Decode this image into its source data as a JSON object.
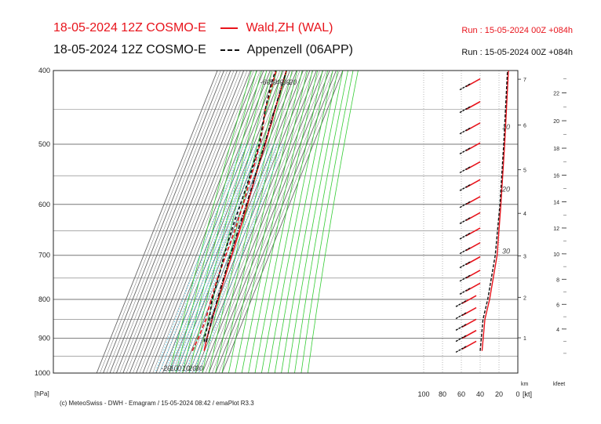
{
  "header": {
    "line1_date": "18-05-2024 12Z COSMO-E",
    "line1_station": "Wald,ZH (WAL)",
    "line1_run": "Run : 15-05-2024 00Z +084h",
    "line2_date": "18-05-2024 12Z COSMO-E",
    "line2_station": "Appenzell (06APP)",
    "line2_run": "Run : 15-05-2024 00Z +084h"
  },
  "footer": {
    "credit": "(c) MeteoSwiss - DWH - Emagram / 15-05-2024  08:42 / emaPlot R3.3",
    "hpa_unit": "[hPa]",
    "kt_unit": "[kt]",
    "km_unit": "km",
    "kfeet_unit": "kfeet"
  },
  "colors": {
    "wald": "#e8141c",
    "appenzell": "#111111",
    "isotherm": "#666666",
    "dry_adiabat": "#33cc33",
    "mixing_ratio": "#55ccee",
    "isobar": "#777777"
  },
  "chart_data": {
    "type": "line",
    "title": "",
    "pressure_axis": {
      "ticks": [
        400,
        500,
        600,
        700,
        800,
        900,
        1000
      ],
      "labels": [
        "400",
        "500",
        "600",
        "700",
        "800",
        "900",
        "1000"
      ],
      "range": [
        1000,
        400
      ],
      "scale": "log"
    },
    "temperature_labels": {
      "bottom": [
        "-20",
        "-10",
        "0",
        "10",
        "20",
        "30"
      ],
      "top": [
        "-60",
        "-50",
        "-40",
        "-30",
        "-20"
      ],
      "left": [
        "-60",
        "-50",
        "-40",
        "-30",
        "-20"
      ]
    },
    "wind_speed_axis": {
      "labels": [
        "100",
        "80",
        "60",
        "40",
        "20",
        "0"
      ],
      "range": [
        100,
        0
      ]
    },
    "temperature_scale_labels": [
      "10",
      "20",
      "30"
    ],
    "km_ticks": [
      "1",
      "2",
      "3",
      "4",
      "5",
      "6",
      "7"
    ],
    "kfeet_ticks": [
      "4",
      "6",
      "8",
      "10",
      "12",
      "14",
      "16",
      "18",
      "20",
      "22"
    ],
    "series": [
      {
        "name": "Wald,ZH (WAL)",
        "temperature": [
          [
            935,
            19.5
          ],
          [
            900,
            16.0
          ],
          [
            850,
            12.5
          ],
          [
            800,
            9.5
          ],
          [
            750,
            6.5
          ],
          [
            700,
            3.5
          ],
          [
            650,
            0.5
          ],
          [
            600,
            -3.5
          ],
          [
            550,
            -8.5
          ],
          [
            500,
            -13.0
          ],
          [
            450,
            -19.0
          ],
          [
            400,
            -25.5
          ]
        ],
        "dewpoint": [
          [
            935,
            1.5
          ],
          [
            900,
            3.0
          ],
          [
            850,
            3.0
          ],
          [
            800,
            -1.0
          ],
          [
            750,
            -4.0
          ],
          [
            700,
            -5.5
          ],
          [
            650,
            -7.0
          ],
          [
            600,
            -10.0
          ],
          [
            550,
            -15.0
          ],
          [
            500,
            -21.0
          ],
          [
            470,
            -28.0
          ],
          [
            450,
            -34.0
          ],
          [
            420,
            -38.0
          ],
          [
            400,
            -41.0
          ]
        ]
      },
      {
        "name": "Appenzell (06APP)",
        "temperature": [
          [
            910,
            17.5
          ],
          [
            900,
            16.5
          ],
          [
            850,
            12.0
          ],
          [
            800,
            8.5
          ],
          [
            750,
            5.0
          ],
          [
            700,
            1.5
          ],
          [
            650,
            -2.0
          ],
          [
            600,
            -5.0
          ],
          [
            550,
            -9.0
          ],
          [
            500,
            -14.0
          ],
          [
            450,
            -19.5
          ],
          [
            400,
            -25.5
          ]
        ],
        "dewpoint": [
          [
            910,
            14.5
          ],
          [
            900,
            12.5
          ],
          [
            850,
            8.0
          ],
          [
            800,
            0.5
          ],
          [
            750,
            -3.0
          ],
          [
            700,
            -8.0
          ],
          [
            650,
            -12.0
          ],
          [
            600,
            -14.0
          ],
          [
            550,
            -17.0
          ],
          [
            500,
            -22.0
          ],
          [
            450,
            -34.0
          ],
          [
            420,
            -40.0
          ],
          [
            400,
            -42.0
          ]
        ]
      }
    ]
  }
}
